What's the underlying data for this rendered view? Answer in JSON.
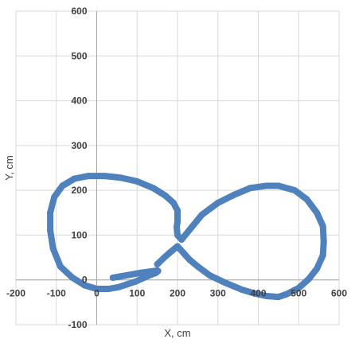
{
  "chart_data": {
    "type": "scatter",
    "title": "",
    "xlabel": "X, cm",
    "ylabel": "Y, cm",
    "xlim": [
      -200,
      600
    ],
    "ylim": [
      -100,
      600
    ],
    "xticks": [
      -200,
      -100,
      0,
      100,
      200,
      300,
      400,
      500,
      600
    ],
    "yticks": [
      -100,
      0,
      100,
      200,
      300,
      400,
      500,
      600
    ],
    "grid": true,
    "series": [
      {
        "color": "#4F81BD",
        "x": [
          40,
          60,
          85,
          110,
          135,
          150,
          152,
          150,
          145,
          135,
          125,
          110,
          95,
          75,
          55,
          30,
          0,
          -30,
          -60,
          -90,
          -108,
          -115,
          -115,
          -105,
          -85,
          -55,
          -20,
          20,
          60,
          100,
          140,
          170,
          190,
          200,
          200,
          198,
          200,
          210,
          230,
          260,
          300,
          340,
          380,
          420,
          450,
          490,
          520,
          545,
          560,
          562,
          560,
          545,
          525,
          500,
          470,
          450,
          420,
          390,
          360,
          320,
          280,
          250,
          230,
          215,
          200,
          180,
          165,
          150
        ],
        "y": [
          5,
          8,
          12,
          16,
          19,
          21,
          20,
          18,
          15,
          12,
          8,
          2,
          -4,
          -10,
          -16,
          -20,
          -20,
          -12,
          5,
          30,
          70,
          110,
          150,
          185,
          210,
          226,
          232,
          232,
          228,
          220,
          205,
          188,
          172,
          155,
          130,
          118,
          100,
          90,
          112,
          145,
          172,
          190,
          205,
          210,
          210,
          200,
          180,
          150,
          120,
          85,
          55,
          25,
          2,
          -18,
          -32,
          -38,
          -36,
          -30,
          -22,
          -7,
          10,
          30,
          45,
          60,
          75,
          60,
          48,
          35
        ]
      }
    ]
  }
}
